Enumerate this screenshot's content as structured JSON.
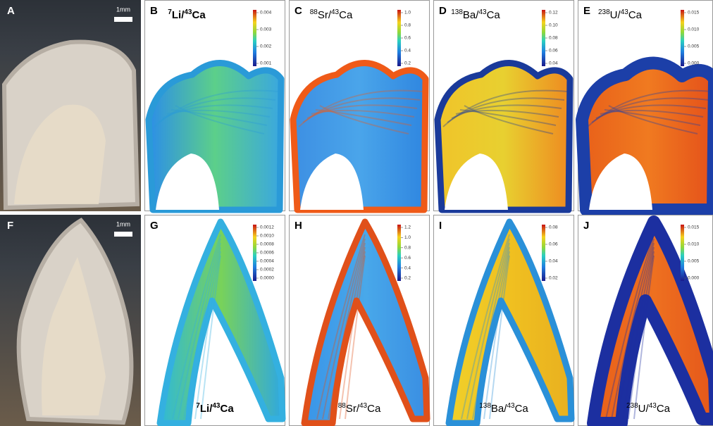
{
  "panels": [
    {
      "letter": "A",
      "scale": "1mm"
    },
    {
      "letter": "B",
      "label": {
        "mass": "7",
        "element": "Li",
        "ref_mass": "43",
        "ref": "Ca"
      },
      "ticks": [
        "0.004",
        "0.003",
        "0.002",
        "0.001"
      ]
    },
    {
      "letter": "C",
      "label": {
        "mass": "88",
        "element": "Sr",
        "ref_mass": "43",
        "ref": "Ca"
      },
      "ticks": [
        "1.0",
        "0.8",
        "0.6",
        "0.4",
        "0.2"
      ]
    },
    {
      "letter": "D",
      "label": {
        "mass": "138",
        "element": "Ba",
        "ref_mass": "43",
        "ref": "Ca"
      },
      "ticks": [
        "0.12",
        "0.10",
        "0.08",
        "0.06",
        "0.04"
      ]
    },
    {
      "letter": "E",
      "label": {
        "mass": "238",
        "element": "U",
        "ref_mass": "43",
        "ref": "Ca"
      },
      "ticks": [
        "0.015",
        "0.010",
        "0.005",
        "0.000"
      ]
    },
    {
      "letter": "F",
      "scale": "1mm"
    },
    {
      "letter": "G",
      "label": {
        "mass": "7",
        "element": "Li",
        "ref_mass": "43",
        "ref": "Ca"
      },
      "ticks": [
        "0.0012",
        "0.0010",
        "0.0008",
        "0.0006",
        "0.0004",
        "0.0002",
        "0.0000"
      ]
    },
    {
      "letter": "H",
      "label": {
        "mass": "88",
        "element": "Sr",
        "ref_mass": "43",
        "ref": "Ca"
      },
      "ticks": [
        "1.2",
        "1.0",
        "0.8",
        "0.6",
        "0.4",
        "0.2"
      ]
    },
    {
      "letter": "I",
      "label": {
        "mass": "138",
        "element": "Ba",
        "ref_mass": "43",
        "ref": "Ca"
      },
      "ticks": [
        "0.08",
        "0.06",
        "0.04",
        "0.02"
      ]
    },
    {
      "letter": "J",
      "label": {
        "mass": "238",
        "element": "U",
        "ref_mass": "43",
        "ref": "Ca"
      },
      "ticks": [
        "0.015",
        "0.010",
        "0.005",
        "0.000"
      ]
    }
  ]
}
